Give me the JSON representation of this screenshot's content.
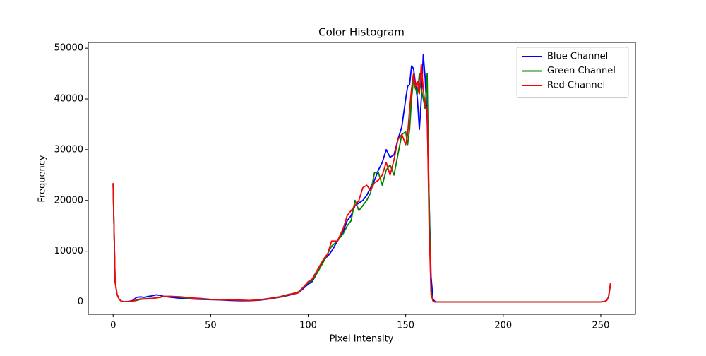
{
  "chart_data": {
    "type": "line",
    "title": "Color Histogram",
    "x_label": "Pixel Intensity",
    "y_label": "Frequency",
    "x": [
      0,
      1,
      2,
      3,
      4,
      5,
      6,
      8,
      10,
      12,
      14,
      16,
      18,
      20,
      22,
      24,
      26,
      30,
      35,
      40,
      45,
      50,
      55,
      60,
      65,
      70,
      75,
      80,
      85,
      90,
      95,
      100,
      102,
      105,
      108,
      110,
      112,
      115,
      118,
      120,
      122,
      124,
      126,
      128,
      130,
      132,
      134,
      136,
      138,
      140,
      142,
      144,
      146,
      148,
      150,
      151,
      152,
      153,
      154,
      155,
      156,
      157,
      158,
      159,
      160,
      161,
      162,
      163,
      164,
      165,
      166,
      170,
      200,
      230,
      250,
      252,
      253,
      254,
      255
    ],
    "series": [
      {
        "name": "Blue Channel",
        "color": "#0000ff",
        "values": [
          23400,
          4000,
          1500,
          600,
          200,
          100,
          50,
          100,
          300,
          900,
          1000,
          900,
          1100,
          1200,
          1400,
          1300,
          1100,
          900,
          700,
          600,
          500,
          450,
          400,
          300,
          250,
          250,
          350,
          600,
          900,
          1300,
          1800,
          3500,
          4000,
          6000,
          8500,
          9000,
          10000,
          12000,
          14000,
          16000,
          17000,
          19000,
          19500,
          20000,
          21000,
          22500,
          24000,
          26000,
          27500,
          30000,
          28500,
          29000,
          32000,
          34500,
          40000,
          42500,
          42800,
          46500,
          46000,
          43000,
          40000,
          34000,
          40000,
          48700,
          44000,
          36000,
          20000,
          5000,
          500,
          100,
          0,
          0,
          0,
          0,
          0,
          100,
          300,
          1000,
          3700
        ]
      },
      {
        "name": "Green Channel",
        "color": "#008000",
        "values": [
          23200,
          4000,
          1500,
          600,
          200,
          100,
          50,
          50,
          150,
          300,
          500,
          600,
          700,
          700,
          800,
          900,
          1100,
          1100,
          900,
          700,
          600,
          500,
          450,
          400,
          350,
          300,
          400,
          700,
          900,
          1400,
          2000,
          3800,
          4200,
          6000,
          8000,
          9500,
          11000,
          12000,
          13500,
          15000,
          16000,
          20000,
          18000,
          19000,
          20000,
          21500,
          25500,
          25500,
          23000,
          26000,
          27000,
          25000,
          29000,
          33000,
          33500,
          31000,
          34000,
          40000,
          44000,
          42000,
          41000,
          45000,
          42000,
          40000,
          38000,
          45000,
          20000,
          2000,
          200,
          0,
          0,
          0,
          0,
          0,
          0,
          100,
          300,
          1000,
          3500
        ]
      },
      {
        "name": "Red Channel",
        "color": "#ff0000",
        "values": [
          23400,
          4000,
          1500,
          600,
          200,
          100,
          50,
          50,
          200,
          400,
          600,
          600,
          600,
          700,
          800,
          900,
          1100,
          1100,
          1000,
          800,
          700,
          500,
          450,
          400,
          350,
          300,
          400,
          700,
          1000,
          1500,
          1800,
          4000,
          4500,
          6500,
          8500,
          9500,
          12000,
          12000,
          14500,
          17000,
          18000,
          19000,
          20000,
          22500,
          23000,
          22000,
          23500,
          24000,
          25000,
          27500,
          25000,
          28000,
          32000,
          33000,
          31000,
          33000,
          38000,
          42000,
          45000,
          42500,
          43500,
          41000,
          46800,
          42000,
          38500,
          38000,
          15000,
          1500,
          200,
          0,
          0,
          0,
          0,
          0,
          0,
          100,
          300,
          1000,
          3700
        ]
      }
    ],
    "xlim": [
      -12.75,
      267.75
    ],
    "ylim": [
      -2435,
      51135
    ],
    "xticks": [
      0,
      50,
      100,
      150,
      200,
      250
    ],
    "yticks": [
      0,
      10000,
      20000,
      30000,
      40000,
      50000
    ],
    "legend": "upper right"
  }
}
